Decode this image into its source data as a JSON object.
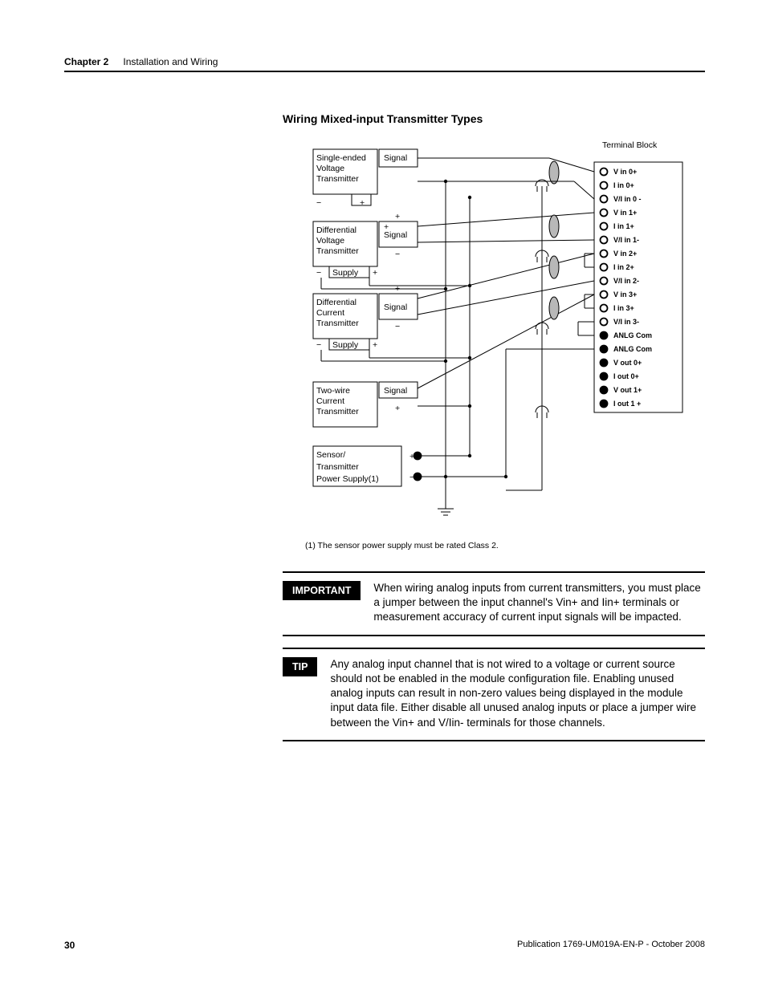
{
  "header": {
    "chapter_label": "Chapter 2",
    "chapter_title": "Installation and Wiring"
  },
  "section_title": "Wiring Mixed-input Transmitter Types",
  "diagram": {
    "type": "wiring-diagram",
    "terminal_block_label": "Terminal Block",
    "terminals": [
      {
        "label": "V in 0+",
        "filled": false
      },
      {
        "label": "I in 0+",
        "filled": false
      },
      {
        "label": "V/I in 0 -",
        "filled": false
      },
      {
        "label": "V in 1+",
        "filled": false
      },
      {
        "label": "I in 1+",
        "filled": false
      },
      {
        "label": "V/I in 1-",
        "filled": false
      },
      {
        "label": "V in 2+",
        "filled": false
      },
      {
        "label": "I in 2+",
        "filled": false
      },
      {
        "label": "V/I in 2-",
        "filled": false
      },
      {
        "label": "V in 3+",
        "filled": false
      },
      {
        "label": "I in 3+",
        "filled": false
      },
      {
        "label": "V/I in 3-",
        "filled": false
      },
      {
        "label": "ANLG Com",
        "filled": true
      },
      {
        "label": "ANLG Com",
        "filled": true
      },
      {
        "label": "V out 0+",
        "filled": true
      },
      {
        "label": "I out 0+",
        "filled": true
      },
      {
        "label": "V out 1+",
        "filled": true
      },
      {
        "label": "I out 1 +",
        "filled": true
      }
    ],
    "transmitters": [
      {
        "title": [
          "Single-ended",
          "Voltage",
          "Transmitter"
        ],
        "sig": "Signal",
        "symbols": [
          "−",
          "+"
        ]
      },
      {
        "title": [
          "Differential",
          "Voltage",
          "Transmitter"
        ],
        "sig": "Signal",
        "sub": "Supply",
        "symbols": [
          "+",
          "−",
          "−",
          "+"
        ]
      },
      {
        "title": [
          "Differential",
          "Current",
          "Transmitter"
        ],
        "sig": "Signal",
        "sub": "Supply",
        "symbols": [
          "+",
          "−",
          "−",
          "+"
        ]
      },
      {
        "title": [
          "Two-wire",
          "Current",
          "Transmitter"
        ],
        "sig": "Signal",
        "symbols": [
          "+"
        ]
      },
      {
        "title": [
          "Sensor/",
          "Transmitter",
          "Power Supply(1)"
        ],
        "symbols": [
          "+",
          "−"
        ]
      }
    ],
    "colors": {
      "stroke": "#000000",
      "ferrite_fill": "#b8b8b8",
      "background": "#ffffff"
    },
    "line_width": 1
  },
  "footnote": "(1) The sensor power supply must be rated Class 2.",
  "callouts": [
    {
      "badge": "IMPORTANT",
      "text": "When wiring analog inputs from current transmitters, you must place a jumper between the input channel's Vin+ and Iin+ terminals or measurement accuracy of current input signals will be impacted."
    },
    {
      "badge": "TIP",
      "text": "Any analog input channel that is not wired to a voltage or current source should not be enabled in the module configuration file. Enabling unused analog inputs can result in non-zero values being displayed in the module input data file. Either disable all unused analog inputs or place a jumper wire between the Vin+ and V/Iin- terminals for those channels."
    }
  ],
  "footer": {
    "page_number": "30",
    "publication": "Publication 1769-UM019A-EN-P - October 2008"
  }
}
